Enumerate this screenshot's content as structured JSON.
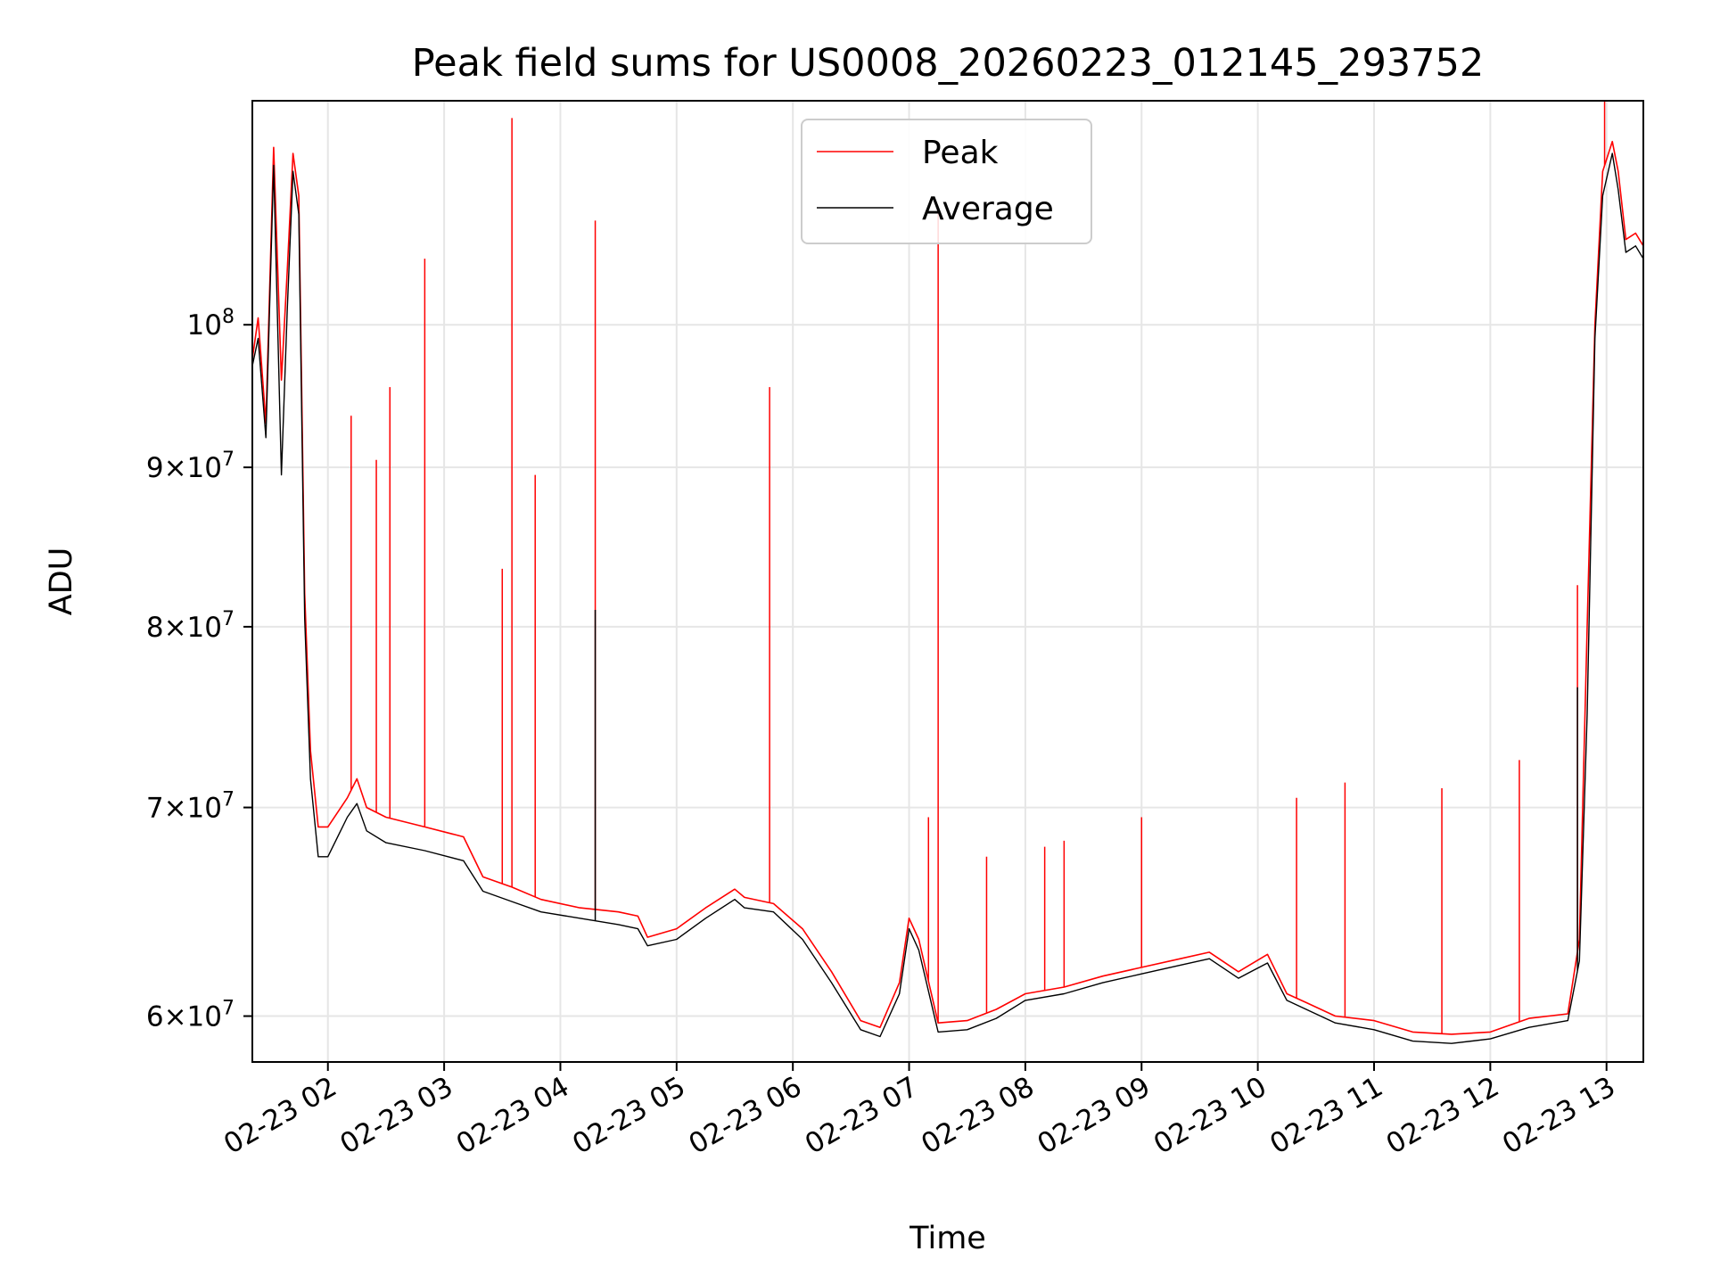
{
  "chart_data": {
    "type": "line",
    "title": "Peak field sums for US0008_20260223_012145_293752",
    "xlabel": "Time",
    "ylabel": "ADU",
    "yscale": "log",
    "ylim": [
      58000000,
      118000000
    ],
    "xlim": [
      "2026-02-23 01:21",
      "2026-02-23 13:19"
    ],
    "grid": true,
    "legend_position": "upper-center",
    "x_ticks": [
      {
        "t": "2026-02-23 02:00",
        "label": "02-23 02"
      },
      {
        "t": "2026-02-23 03:00",
        "label": "02-23 03"
      },
      {
        "t": "2026-02-23 04:00",
        "label": "02-23 04"
      },
      {
        "t": "2026-02-23 05:00",
        "label": "02-23 05"
      },
      {
        "t": "2026-02-23 06:00",
        "label": "02-23 06"
      },
      {
        "t": "2026-02-23 07:00",
        "label": "02-23 07"
      },
      {
        "t": "2026-02-23 08:00",
        "label": "02-23 08"
      },
      {
        "t": "2026-02-23 09:00",
        "label": "02-23 09"
      },
      {
        "t": "2026-02-23 10:00",
        "label": "02-23 10"
      },
      {
        "t": "2026-02-23 11:00",
        "label": "02-23 11"
      },
      {
        "t": "2026-02-23 12:00",
        "label": "02-23 12"
      },
      {
        "t": "2026-02-23 13:00",
        "label": "02-23 13"
      }
    ],
    "y_ticks": [
      {
        "value": 60000000,
        "mantissa": "6",
        "exp": "7"
      },
      {
        "value": 70000000,
        "mantissa": "7",
        "exp": "7"
      },
      {
        "value": 80000000,
        "mantissa": "8",
        "exp": "7"
      },
      {
        "value": 90000000,
        "mantissa": "9",
        "exp": "7"
      },
      {
        "value": 100000000,
        "mantissa": "",
        "exp": "8"
      }
    ],
    "series": [
      {
        "name": "Peak",
        "color": "#ff0000",
        "points": [
          [
            "2026-02-23 01:21",
            97500000
          ],
          [
            "2026-02-23 01:24",
            100500000
          ],
          [
            "2026-02-23 01:28",
            93000000
          ],
          [
            "2026-02-23 01:32",
            114000000
          ],
          [
            "2026-02-23 01:36",
            96000000
          ],
          [
            "2026-02-23 01:39",
            104000000
          ],
          [
            "2026-02-23 01:42",
            113500000
          ],
          [
            "2026-02-23 01:45",
            110000000
          ],
          [
            "2026-02-23 01:48",
            82000000
          ],
          [
            "2026-02-23 01:51",
            73000000
          ],
          [
            "2026-02-23 01:55",
            69000000
          ],
          [
            "2026-02-23 02:00",
            69000000
          ],
          [
            "2026-02-23 02:10",
            70500000
          ],
          [
            "2026-02-23 02:15",
            71500000
          ],
          [
            "2026-02-23 02:20",
            70000000
          ],
          [
            "2026-02-23 02:30",
            69500000
          ],
          [
            "2026-02-23 02:50",
            69000000
          ],
          [
            "2026-02-23 03:10",
            68500000
          ],
          [
            "2026-02-23 03:20",
            66500000
          ],
          [
            "2026-02-23 03:35",
            66000000
          ],
          [
            "2026-02-23 03:50",
            65400000
          ],
          [
            "2026-02-23 04:10",
            65000000
          ],
          [
            "2026-02-23 04:30",
            64800000
          ],
          [
            "2026-02-23 04:40",
            64600000
          ],
          [
            "2026-02-23 04:45",
            63600000
          ],
          [
            "2026-02-23 05:00",
            64000000
          ],
          [
            "2026-02-23 05:15",
            65000000
          ],
          [
            "2026-02-23 05:30",
            65900000
          ],
          [
            "2026-02-23 05:35",
            65500000
          ],
          [
            "2026-02-23 05:50",
            65200000
          ],
          [
            "2026-02-23 06:05",
            64000000
          ],
          [
            "2026-02-23 06:20",
            62000000
          ],
          [
            "2026-02-23 06:35",
            59800000
          ],
          [
            "2026-02-23 06:45",
            59500000
          ],
          [
            "2026-02-23 06:55",
            61500000
          ],
          [
            "2026-02-23 07:00",
            64500000
          ],
          [
            "2026-02-23 07:05",
            63500000
          ],
          [
            "2026-02-23 07:15",
            59700000
          ],
          [
            "2026-02-23 07:30",
            59800000
          ],
          [
            "2026-02-23 07:45",
            60300000
          ],
          [
            "2026-02-23 08:00",
            61000000
          ],
          [
            "2026-02-23 08:20",
            61300000
          ],
          [
            "2026-02-23 08:40",
            61800000
          ],
          [
            "2026-02-23 09:00",
            62200000
          ],
          [
            "2026-02-23 09:20",
            62600000
          ],
          [
            "2026-02-23 09:35",
            62900000
          ],
          [
            "2026-02-23 09:50",
            62000000
          ],
          [
            "2026-02-23 10:05",
            62800000
          ],
          [
            "2026-02-23 10:15",
            61000000
          ],
          [
            "2026-02-23 10:25",
            60600000
          ],
          [
            "2026-02-23 10:40",
            60000000
          ],
          [
            "2026-02-23 11:00",
            59800000
          ],
          [
            "2026-02-23 11:20",
            59300000
          ],
          [
            "2026-02-23 11:40",
            59200000
          ],
          [
            "2026-02-23 12:00",
            59300000
          ],
          [
            "2026-02-23 12:20",
            59900000
          ],
          [
            "2026-02-23 12:40",
            60100000
          ],
          [
            "2026-02-23 12:46",
            63500000
          ],
          [
            "2026-02-23 12:50",
            80000000
          ],
          [
            "2026-02-23 12:54",
            100000000
          ],
          [
            "2026-02-23 12:58",
            112000000
          ],
          [
            "2026-02-23 13:03",
            114500000
          ],
          [
            "2026-02-23 13:06",
            112000000
          ],
          [
            "2026-02-23 13:10",
            106500000
          ],
          [
            "2026-02-23 13:15",
            107000000
          ],
          [
            "2026-02-23 13:19",
            106000000
          ]
        ],
        "spikes": [
          [
            "2026-02-23 02:12",
            93500000
          ],
          [
            "2026-02-23 02:25",
            90500000
          ],
          [
            "2026-02-23 02:32",
            95500000
          ],
          [
            "2026-02-23 02:50",
            105000000
          ],
          [
            "2026-02-23 03:30",
            83500000
          ],
          [
            "2026-02-23 03:35",
            116500000
          ],
          [
            "2026-02-23 03:47",
            89500000
          ],
          [
            "2026-02-23 04:18",
            108000000
          ],
          [
            "2026-02-23 05:48",
            95500000
          ],
          [
            "2026-02-23 07:15",
            109000000
          ],
          [
            "2026-02-23 07:10",
            69500000
          ],
          [
            "2026-02-23 07:40",
            67500000
          ],
          [
            "2026-02-23 08:10",
            68000000
          ],
          [
            "2026-02-23 08:20",
            68300000
          ],
          [
            "2026-02-23 09:00",
            69500000
          ],
          [
            "2026-02-23 10:20",
            70500000
          ],
          [
            "2026-02-23 10:45",
            71300000
          ],
          [
            "2026-02-23 11:35",
            71000000
          ],
          [
            "2026-02-23 12:15",
            72500000
          ],
          [
            "2026-02-23 12:45",
            82500000
          ],
          [
            "2026-02-23 12:59",
            118000000
          ]
        ]
      },
      {
        "name": "Average",
        "color": "#000000",
        "points": [
          [
            "2026-02-23 01:21",
            97000000
          ],
          [
            "2026-02-23 01:24",
            99000000
          ],
          [
            "2026-02-23 01:28",
            92000000
          ],
          [
            "2026-02-23 01:32",
            112500000
          ],
          [
            "2026-02-23 01:36",
            89500000
          ],
          [
            "2026-02-23 01:39",
            101000000
          ],
          [
            "2026-02-23 01:42",
            112000000
          ],
          [
            "2026-02-23 01:45",
            108500000
          ],
          [
            "2026-02-23 01:48",
            80500000
          ],
          [
            "2026-02-23 01:51",
            71500000
          ],
          [
            "2026-02-23 01:55",
            67500000
          ],
          [
            "2026-02-23 02:00",
            67500000
          ],
          [
            "2026-02-23 02:10",
            69500000
          ],
          [
            "2026-02-23 02:15",
            70200000
          ],
          [
            "2026-02-23 02:20",
            68800000
          ],
          [
            "2026-02-23 02:30",
            68200000
          ],
          [
            "2026-02-23 02:50",
            67800000
          ],
          [
            "2026-02-23 03:10",
            67300000
          ],
          [
            "2026-02-23 03:20",
            65800000
          ],
          [
            "2026-02-23 03:35",
            65300000
          ],
          [
            "2026-02-23 03:50",
            64800000
          ],
          [
            "2026-02-23 04:10",
            64500000
          ],
          [
            "2026-02-23 04:30",
            64200000
          ],
          [
            "2026-02-23 04:40",
            64000000
          ],
          [
            "2026-02-23 04:45",
            63200000
          ],
          [
            "2026-02-23 05:00",
            63500000
          ],
          [
            "2026-02-23 05:15",
            64500000
          ],
          [
            "2026-02-23 05:30",
            65400000
          ],
          [
            "2026-02-23 05:35",
            65000000
          ],
          [
            "2026-02-23 05:50",
            64800000
          ],
          [
            "2026-02-23 06:05",
            63500000
          ],
          [
            "2026-02-23 06:20",
            61500000
          ],
          [
            "2026-02-23 06:35",
            59400000
          ],
          [
            "2026-02-23 06:45",
            59100000
          ],
          [
            "2026-02-23 06:55",
            61000000
          ],
          [
            "2026-02-23 07:00",
            64000000
          ],
          [
            "2026-02-23 07:05",
            63000000
          ],
          [
            "2026-02-23 07:15",
            59300000
          ],
          [
            "2026-02-23 07:30",
            59400000
          ],
          [
            "2026-02-23 07:45",
            59900000
          ],
          [
            "2026-02-23 08:00",
            60700000
          ],
          [
            "2026-02-23 08:20",
            61000000
          ],
          [
            "2026-02-23 08:40",
            61500000
          ],
          [
            "2026-02-23 09:00",
            61900000
          ],
          [
            "2026-02-23 09:20",
            62300000
          ],
          [
            "2026-02-23 09:35",
            62600000
          ],
          [
            "2026-02-23 09:50",
            61700000
          ],
          [
            "2026-02-23 10:05",
            62400000
          ],
          [
            "2026-02-23 10:15",
            60700000
          ],
          [
            "2026-02-23 10:25",
            60300000
          ],
          [
            "2026-02-23 10:40",
            59700000
          ],
          [
            "2026-02-23 11:00",
            59400000
          ],
          [
            "2026-02-23 11:20",
            58900000
          ],
          [
            "2026-02-23 11:40",
            58800000
          ],
          [
            "2026-02-23 12:00",
            59000000
          ],
          [
            "2026-02-23 12:20",
            59500000
          ],
          [
            "2026-02-23 12:40",
            59800000
          ],
          [
            "2026-02-23 12:46",
            62500000
          ],
          [
            "2026-02-23 12:50",
            75000000
          ],
          [
            "2026-02-23 12:54",
            99000000
          ],
          [
            "2026-02-23 12:58",
            110000000
          ],
          [
            "2026-02-23 13:03",
            113500000
          ],
          [
            "2026-02-23 13:06",
            110500000
          ],
          [
            "2026-02-23 13:10",
            105500000
          ],
          [
            "2026-02-23 13:15",
            106000000
          ],
          [
            "2026-02-23 13:19",
            105000000
          ]
        ],
        "spikes": [
          [
            "2026-02-23 04:18",
            81000000
          ],
          [
            "2026-02-23 12:45",
            76500000
          ]
        ]
      }
    ]
  }
}
